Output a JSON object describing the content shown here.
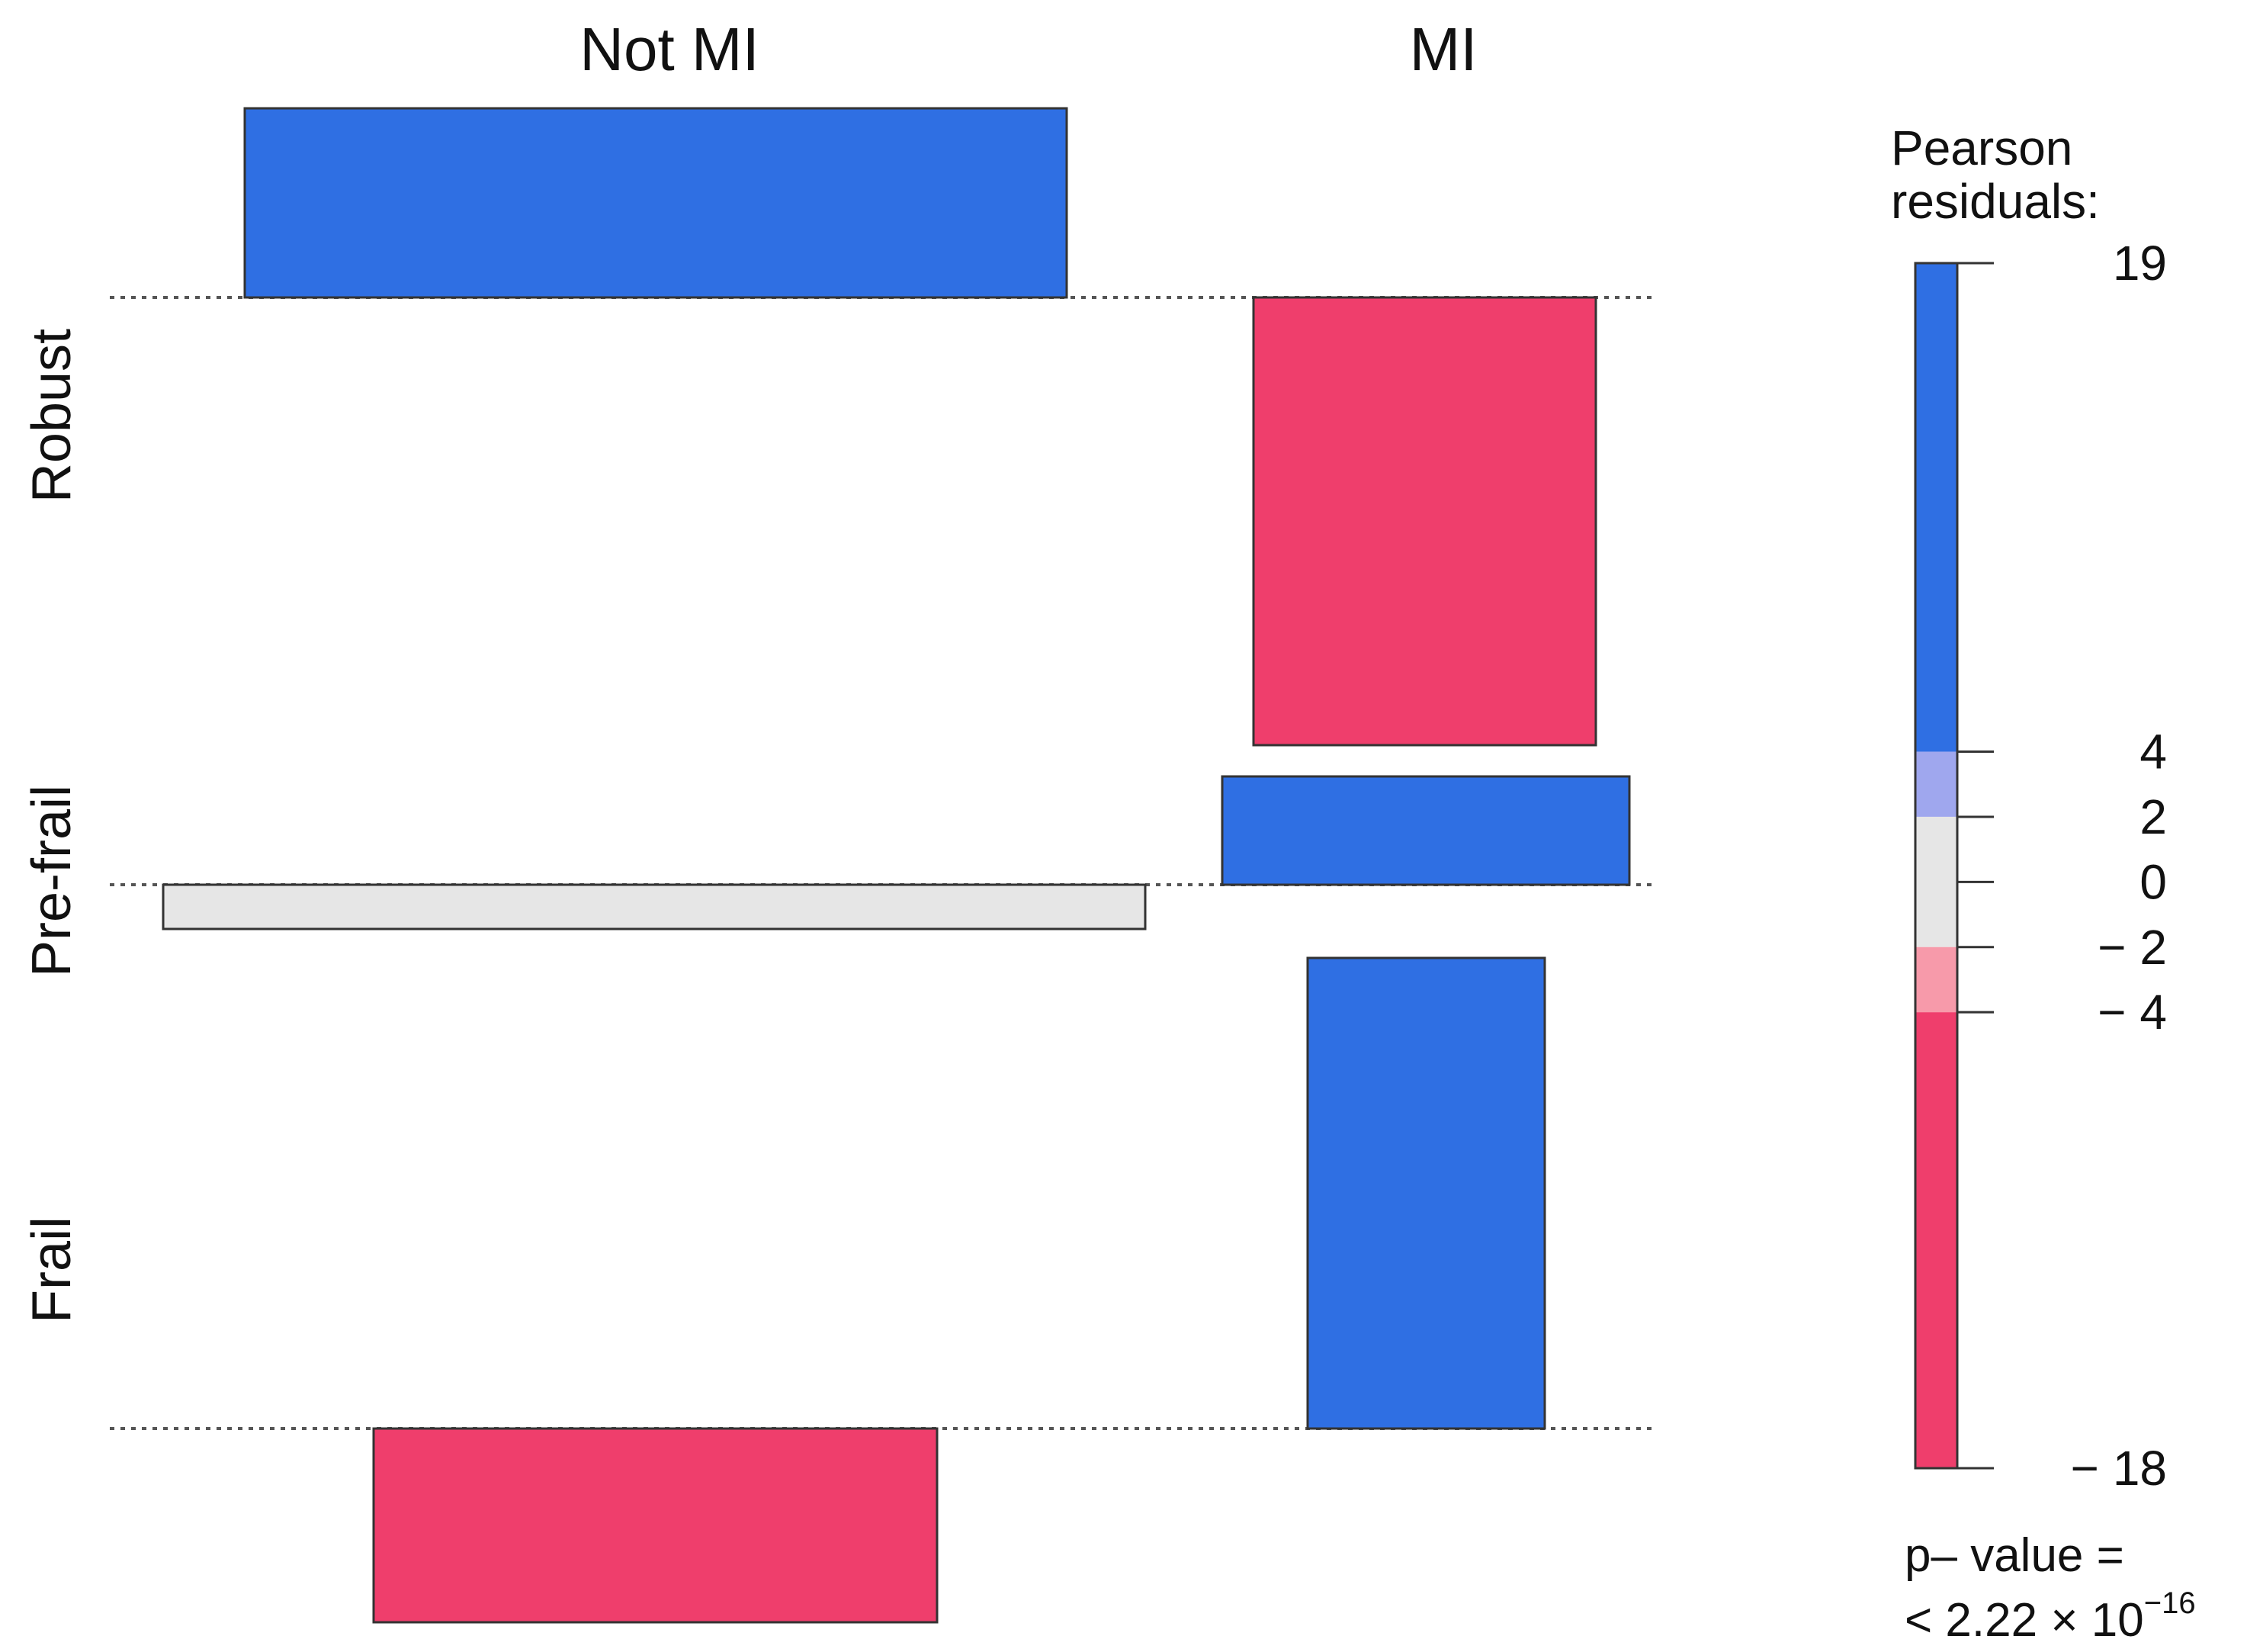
{
  "chart_data": {
    "type": "association plot",
    "columns": [
      "Not MI",
      "MI"
    ],
    "rows": [
      "Robust",
      "Pre-frail",
      "Frail"
    ],
    "cells": [
      {
        "row": "Robust",
        "col": "Not MI",
        "residual": 7.5,
        "color": "#2f6fe3"
      },
      {
        "row": "Robust",
        "col": "MI",
        "residual": -18,
        "color": "#ef3e6c"
      },
      {
        "row": "Pre-frail",
        "col": "Not MI",
        "residual": -1.4,
        "color": "#e6e6e6"
      },
      {
        "row": "Pre-frail",
        "col": "MI",
        "residual": 4.3,
        "color": "#2f6fe3"
      },
      {
        "row": "Frail",
        "col": "Not MI",
        "residual": -5.5,
        "color": "#ef3e6c"
      },
      {
        "row": "Frail",
        "col": "MI",
        "residual": 19,
        "color": "#2f6fe3"
      }
    ],
    "legend": {
      "title_line1": "Pearson",
      "title_line2": "residuals:",
      "range": [
        -18,
        19
      ],
      "ticks": [
        {
          "value": 19,
          "label": "19"
        },
        {
          "value": 4,
          "label": "4"
        },
        {
          "value": 2,
          "label": "2"
        },
        {
          "value": 0,
          "label": "0"
        },
        {
          "value": -2,
          "label": "− 2"
        },
        {
          "value": -4,
          "label": "− 4"
        },
        {
          "value": -18,
          "label": "− 18"
        }
      ],
      "bands": [
        {
          "from": 4,
          "to": 19,
          "color": "#2f6fe3"
        },
        {
          "from": 2,
          "to": 4,
          "color": "#9fa7ee"
        },
        {
          "from": -2,
          "to": 2,
          "color": "#e6e6e6"
        },
        {
          "from": -4,
          "to": -2,
          "color": "#f79aaa"
        },
        {
          "from": -18,
          "to": -4,
          "color": "#ef3e6c"
        }
      ]
    },
    "pvalue": {
      "line1": "p– value =",
      "line2": "< 2.22 × 10",
      "exponent": "−16"
    }
  }
}
